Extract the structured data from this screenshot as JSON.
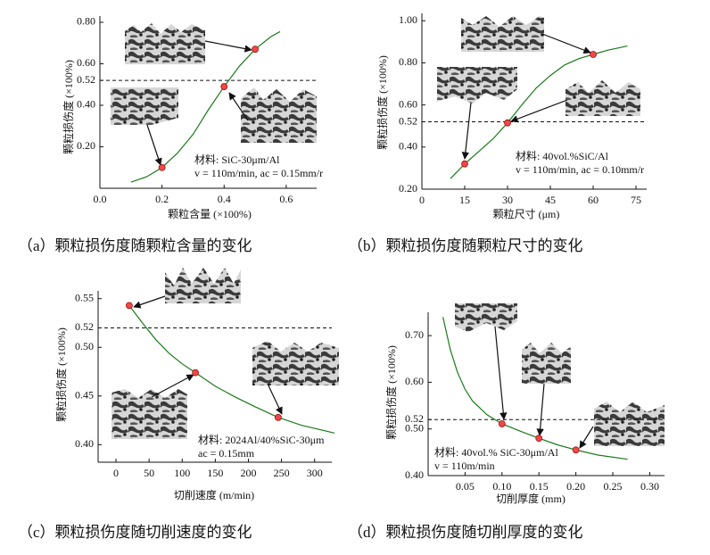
{
  "chart_data": [
    {
      "type": "line",
      "caption": "（a）颗粒损伤度随颗粒含量的变化",
      "xlabel": "颗粒含量 (×100%)",
      "ylabel": "颗粒损伤度 (×100%)",
      "xlim": [
        0,
        0.698
      ],
      "ylim": [
        0,
        0.83
      ],
      "xticks": [
        {
          "value": 0,
          "label": "0.0"
        },
        {
          "value": 0.2,
          "label": "0.2"
        },
        {
          "value": 0.4,
          "label": "0.4"
        },
        {
          "value": 0.6,
          "label": "0.6"
        }
      ],
      "yticks": [
        {
          "value": 0.2,
          "label": "0.20"
        },
        {
          "value": 0.4,
          "label": "0.40"
        },
        {
          "value": 0.52,
          "label": "0.52"
        },
        {
          "value": 0.6,
          "label": "0.60"
        },
        {
          "value": 0.8,
          "label": "0.80"
        }
      ],
      "reference_line": 0.52,
      "annotations": [
        "材料: SiC-30μm/Al",
        "v = 110m/min, ac = 0.15mm/r"
      ],
      "curve": {
        "color": "#1a7a1a",
        "x": [
          0.1,
          0.15,
          0.2,
          0.25,
          0.3,
          0.35,
          0.4,
          0.45,
          0.5,
          0.55,
          0.58
        ],
        "values": [
          0.03,
          0.055,
          0.1,
          0.17,
          0.26,
          0.38,
          0.49,
          0.59,
          0.67,
          0.73,
          0.755
        ]
      },
      "points": {
        "color": "#f04848",
        "x": [
          0.2,
          0.4,
          0.5
        ],
        "values": [
          0.1,
          0.49,
          0.67
        ]
      }
    },
    {
      "type": "line",
      "caption": "（b）颗粒损伤度随颗粒尺寸的变化",
      "xlabel": "颗粒尺寸 (μm)",
      "ylabel": "颗粒损伤度 (×100%)",
      "xlim": [
        0,
        78.75
      ],
      "ylim": [
        0.2,
        1.035
      ],
      "xticks": [
        0,
        15,
        30,
        45,
        60,
        75
      ],
      "yticks": [
        {
          "value": 0.2,
          "label": "0.20"
        },
        {
          "value": 0.4,
          "label": "0.40"
        },
        {
          "value": 0.52,
          "label": "0.52"
        },
        {
          "value": 0.6,
          "label": "0.60"
        },
        {
          "value": 0.8,
          "label": "0.80"
        },
        {
          "value": 1,
          "label": "1.00"
        }
      ],
      "reference_line": 0.52,
      "annotations": [
        "材料: 40vol.%SiC/Al",
        "v = 110m/min, ac = 0.10mm/r"
      ],
      "curve": {
        "color": "#1a7a1a",
        "x": [
          10,
          15,
          20,
          25,
          30,
          35,
          40,
          45,
          50,
          55,
          60,
          65,
          72
        ],
        "values": [
          0.25,
          0.32,
          0.38,
          0.44,
          0.515,
          0.6,
          0.68,
          0.74,
          0.79,
          0.82,
          0.84,
          0.86,
          0.88
        ]
      },
      "points": {
        "color": "#f04848",
        "x": [
          15,
          30,
          60
        ],
        "values": [
          0.32,
          0.515,
          0.84
        ]
      }
    },
    {
      "type": "line",
      "caption": "（c）颗粒损伤度随切削速度的变化",
      "xlabel": "切削速度 (m/min)",
      "ylabel": "颗粒损伤度 (×100%)",
      "xlim": [
        -27,
        326
      ],
      "ylim": [
        0.382,
        0.558
      ],
      "xticks": [
        0,
        50,
        100,
        150,
        200,
        250,
        300
      ],
      "yticks": [
        {
          "value": 0.4,
          "label": "0.40"
        },
        {
          "value": 0.45,
          "label": "0.45"
        },
        {
          "value": 0.5,
          "label": "0.50"
        },
        {
          "value": 0.52,
          "label": "0.52"
        },
        {
          "value": 0.55,
          "label": "0.55"
        }
      ],
      "reference_line": 0.52,
      "annotations": [
        "材料: 2024Al/40%SiC-30μm",
        "ac = 0.15mm"
      ],
      "curve": {
        "color": "#1a7a1a",
        "x": [
          20,
          40,
          60,
          80,
          100,
          120,
          150,
          180,
          210,
          245,
          280,
          330
        ],
        "values": [
          0.543,
          0.525,
          0.508,
          0.494,
          0.483,
          0.474,
          0.46,
          0.449,
          0.439,
          0.428,
          0.42,
          0.412
        ]
      },
      "points": {
        "color": "#f04848",
        "x": [
          20,
          120,
          245
        ],
        "values": [
          0.543,
          0.474,
          0.428
        ]
      }
    },
    {
      "type": "line",
      "caption": "（d）颗粒损伤度随切削厚度的变化",
      "xlabel": "切削厚度 (mm)",
      "ylabel": "颗粒损伤度 (×100%)",
      "xlim": [
        0,
        0.32
      ],
      "ylim": [
        0.4,
        0.75
      ],
      "xticks": [
        {
          "value": 0.05,
          "label": "0.05"
        },
        {
          "value": 0.1,
          "label": "0.10"
        },
        {
          "value": 0.15,
          "label": "0.15"
        },
        {
          "value": 0.2,
          "label": "0.20"
        },
        {
          "value": 0.25,
          "label": "0.25"
        },
        {
          "value": 0.3,
          "label": "0.30"
        }
      ],
      "yticks": [
        {
          "value": 0.4,
          "label": "0.40"
        },
        {
          "value": 0.5,
          "label": "0.50"
        },
        {
          "value": 0.52,
          "label": "0.52"
        },
        {
          "value": 0.6,
          "label": "0.60"
        },
        {
          "value": 0.7,
          "label": "0.70"
        }
      ],
      "reference_line": 0.52,
      "annotations": [
        "材料: 40vol.% SiC-30μm/Al",
        "v = 110m/min"
      ],
      "curve": {
        "color": "#1a7a1a",
        "x": [
          0.02,
          0.03,
          0.04,
          0.05,
          0.06,
          0.08,
          0.1,
          0.125,
          0.15,
          0.175,
          0.2,
          0.23,
          0.27
        ],
        "values": [
          0.74,
          0.67,
          0.62,
          0.585,
          0.56,
          0.53,
          0.511,
          0.495,
          0.48,
          0.466,
          0.455,
          0.444,
          0.435
        ]
      },
      "points": {
        "color": "#f04848",
        "x": [
          0.1,
          0.15,
          0.2
        ],
        "values": [
          0.511,
          0.48,
          0.455
        ]
      }
    }
  ]
}
